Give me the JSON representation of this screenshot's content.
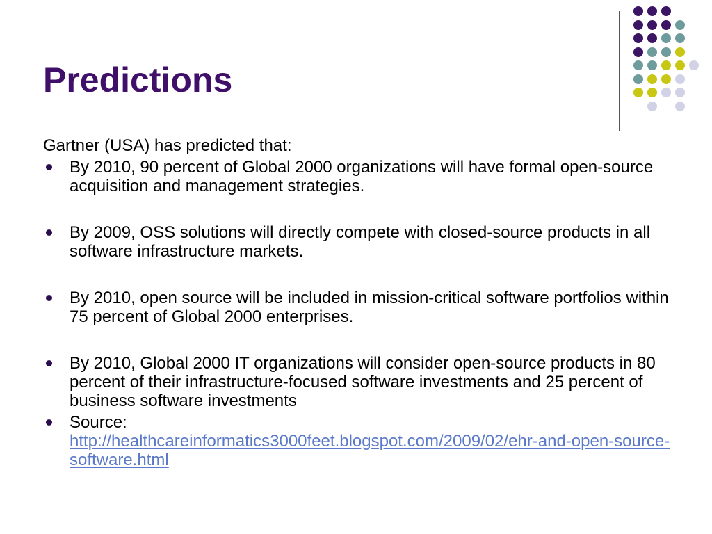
{
  "slide": {
    "title": "Predictions",
    "intro": "Gartner (USA) has predicted that:",
    "bullets": [
      "By 2010, 90 percent of Global 2000 organizations will have formal open-source acquisition and management strategies.",
      "By 2009, OSS solutions will directly compete with closed-source products in all software infrastructure markets.",
      "By 2010, open source will be included in mission-critical software portfolios within 75 percent of Global 2000 enterprises.",
      "By 2010, Global 2000 IT organizations will consider open-source products in 80 percent of their infrastructure-focused software investments and 25 percent of business software investments"
    ],
    "source_label": "Source:",
    "source_link": "http://healthcareinformatics3000feet.blogspot.com/2009/02/ehr-and-open-source-software.html"
  },
  "colors": {
    "title": "#3f0f69",
    "purple": "#3c1464",
    "teal": "#6e9b9b",
    "yellow": "#c8c814",
    "lavender": "#d2d2e6",
    "link": "#5a79c9"
  }
}
